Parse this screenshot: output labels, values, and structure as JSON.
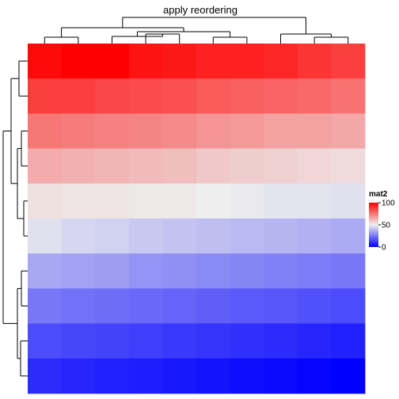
{
  "chart_data": {
    "type": "heatmap",
    "title": "apply reordering",
    "rows": 10,
    "cols": 10,
    "values": [
      [
        98,
        100,
        100,
        96,
        95,
        93,
        93,
        92,
        89,
        87
      ],
      [
        87,
        87,
        85,
        84,
        83,
        81,
        80,
        79,
        78,
        76
      ],
      [
        75,
        74,
        73,
        72,
        71,
        69,
        68,
        66,
        66,
        65
      ],
      [
        64,
        63,
        62,
        61,
        60,
        58,
        57,
        56,
        55,
        54
      ],
      [
        53,
        52,
        52,
        51,
        51,
        50,
        49,
        48,
        48,
        47
      ],
      [
        47,
        45,
        44,
        42,
        41,
        40,
        39,
        38,
        37,
        36
      ],
      [
        35,
        34,
        33,
        31,
        30,
        29,
        28,
        27,
        26,
        25
      ],
      [
        25,
        24,
        23,
        22,
        21,
        20,
        19,
        18,
        17,
        16
      ],
      [
        16,
        15,
        14,
        13,
        12,
        11,
        10,
        9,
        8,
        7
      ],
      [
        9,
        8,
        7,
        6,
        5,
        4,
        3,
        2,
        1,
        0
      ]
    ],
    "color_scale": {
      "low": "#0000ff",
      "mid": "#eeeeee",
      "high": "#ff0000",
      "domain": [
        0,
        50,
        100
      ]
    },
    "legend": {
      "title": "mat2",
      "ticks": [
        100,
        50,
        0
      ],
      "position": "right"
    },
    "dendrograms": {
      "rows": "left",
      "columns": "top"
    }
  }
}
